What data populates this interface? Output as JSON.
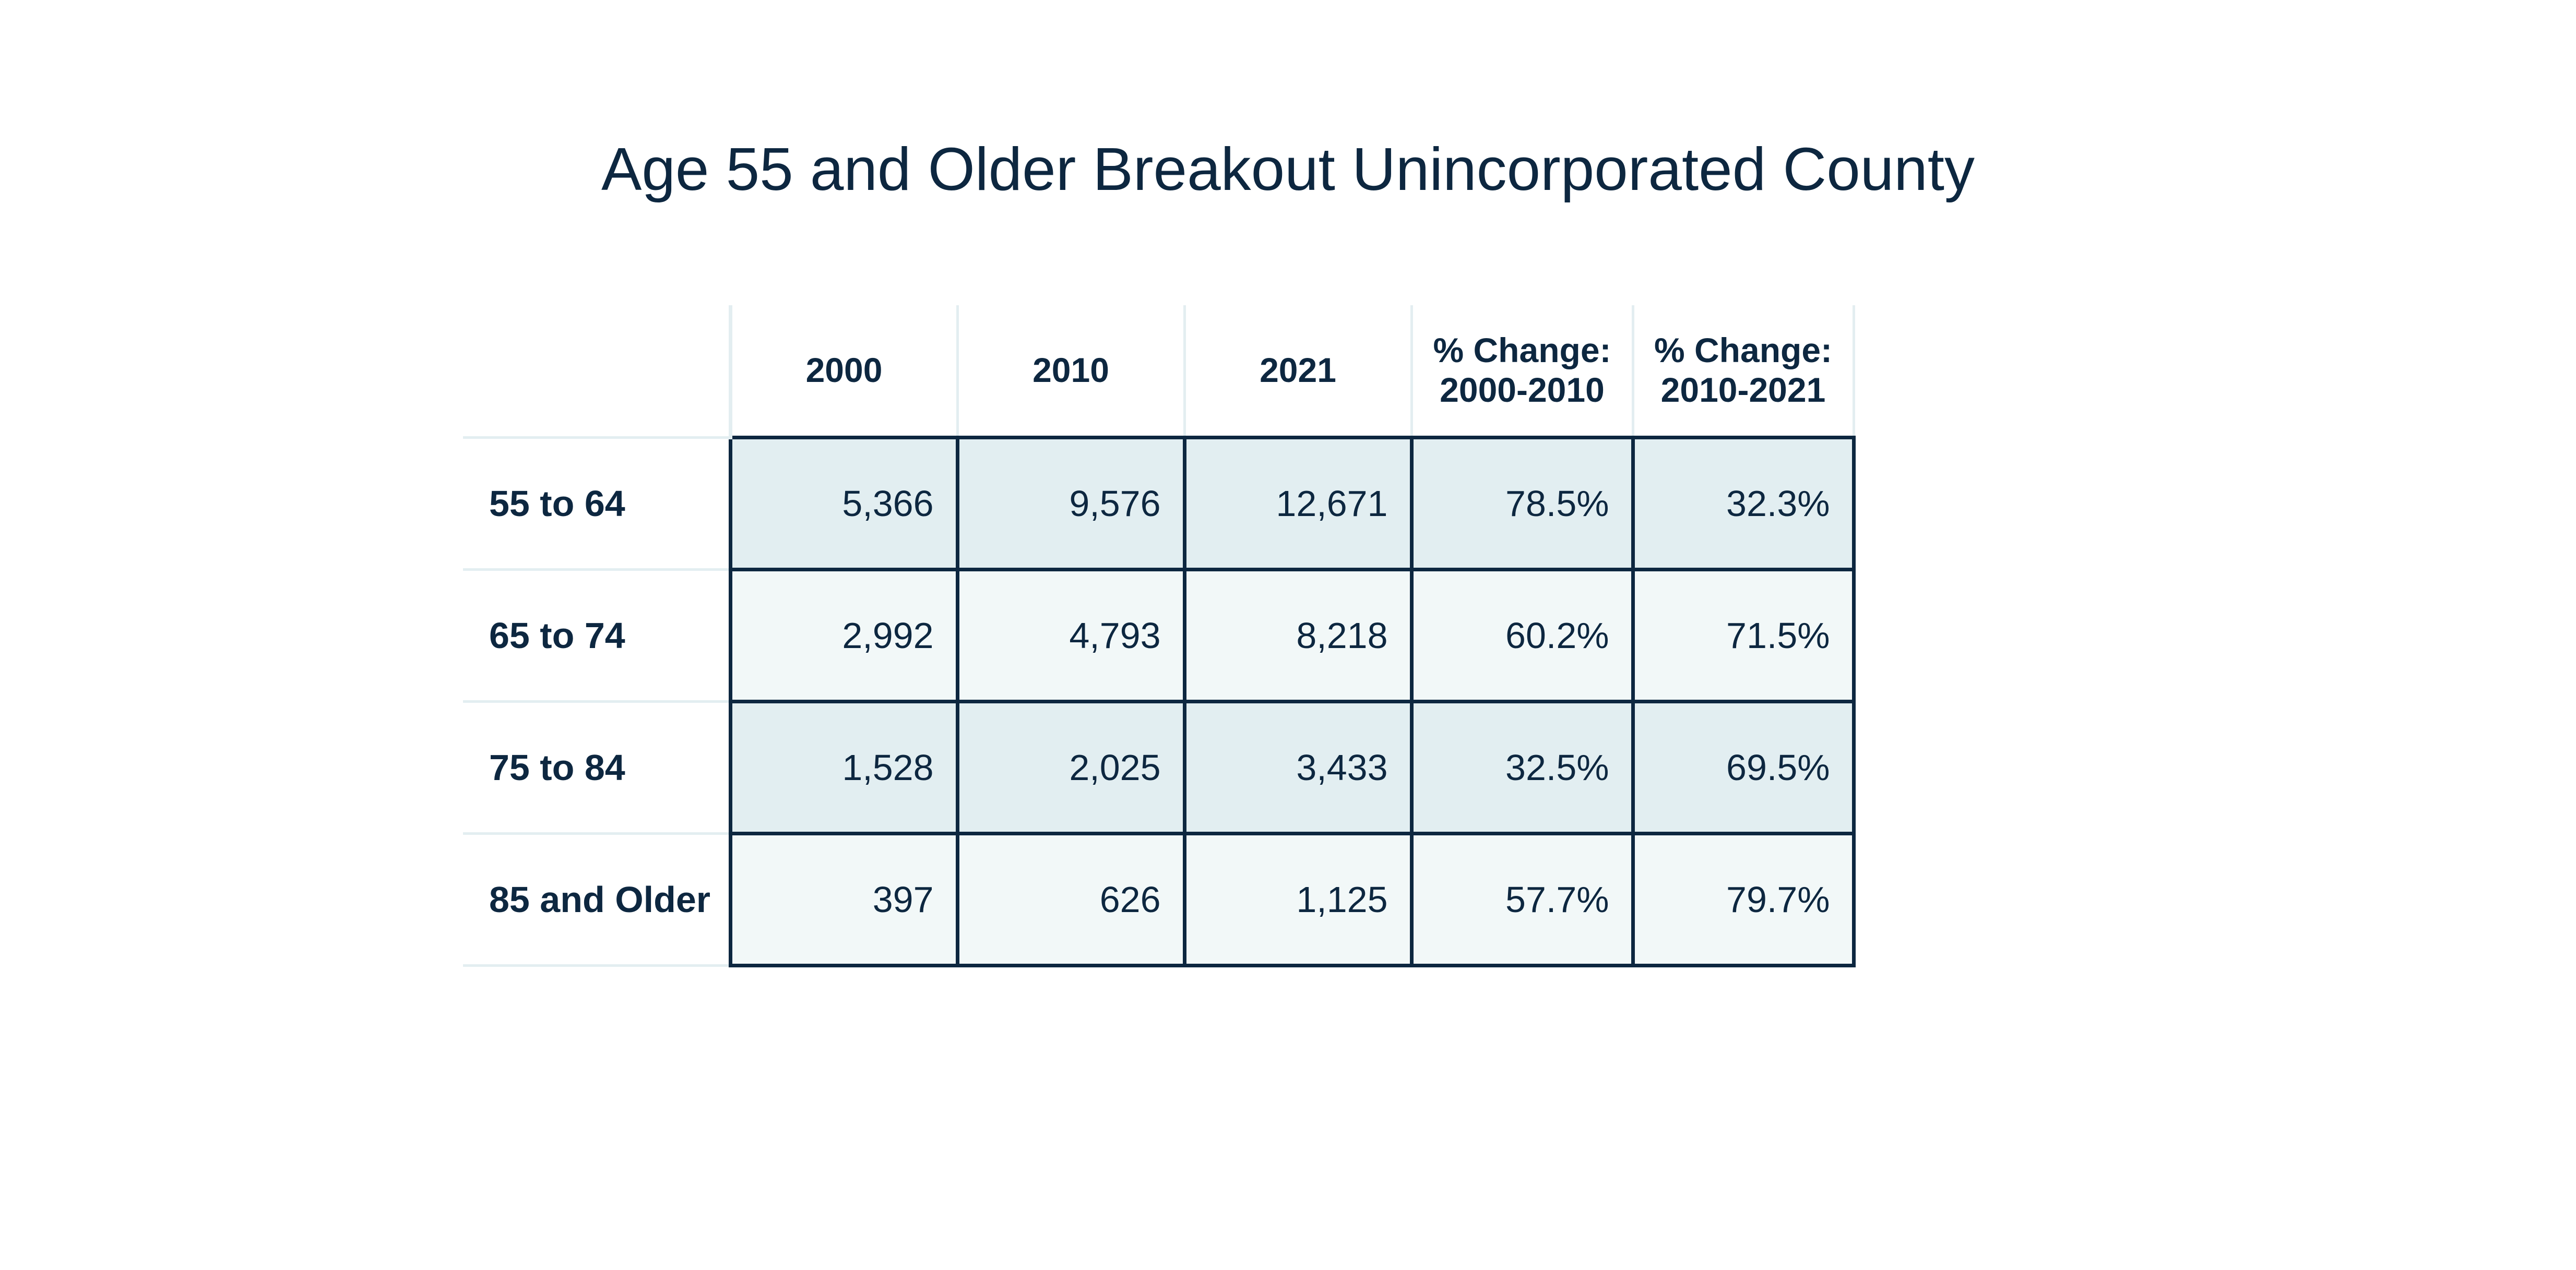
{
  "title": "Age 55 and Older Breakout Unincorporated County",
  "table": {
    "columns": [
      {
        "line1": "2000",
        "line2": ""
      },
      {
        "line1": "2010",
        "line2": ""
      },
      {
        "line1": "2021",
        "line2": ""
      },
      {
        "line1": "% Change:",
        "line2": "2000-2010"
      },
      {
        "line1": "% Change:",
        "line2": "2010-2021"
      }
    ],
    "rows": [
      {
        "label": "55 to 64",
        "cells": [
          "5,366",
          "9,576",
          "12,671",
          "78.5%",
          "32.3%"
        ]
      },
      {
        "label": "65 to 74",
        "cells": [
          "2,992",
          "4,793",
          "8,218",
          "60.2%",
          "71.5%"
        ]
      },
      {
        "label": "75 to 84",
        "cells": [
          "1,528",
          "2,025",
          "3,433",
          "32.5%",
          "69.5%"
        ]
      },
      {
        "label": "85 and Older",
        "cells": [
          "397",
          "626",
          "1,125",
          "57.7%",
          "79.7%"
        ]
      }
    ]
  },
  "colors": {
    "text": "#0d2740",
    "row_dark": "#e2eef1",
    "row_light": "#f2f8f8",
    "grid_light": "#e3eef1",
    "border_dark": "#0d2740"
  }
}
